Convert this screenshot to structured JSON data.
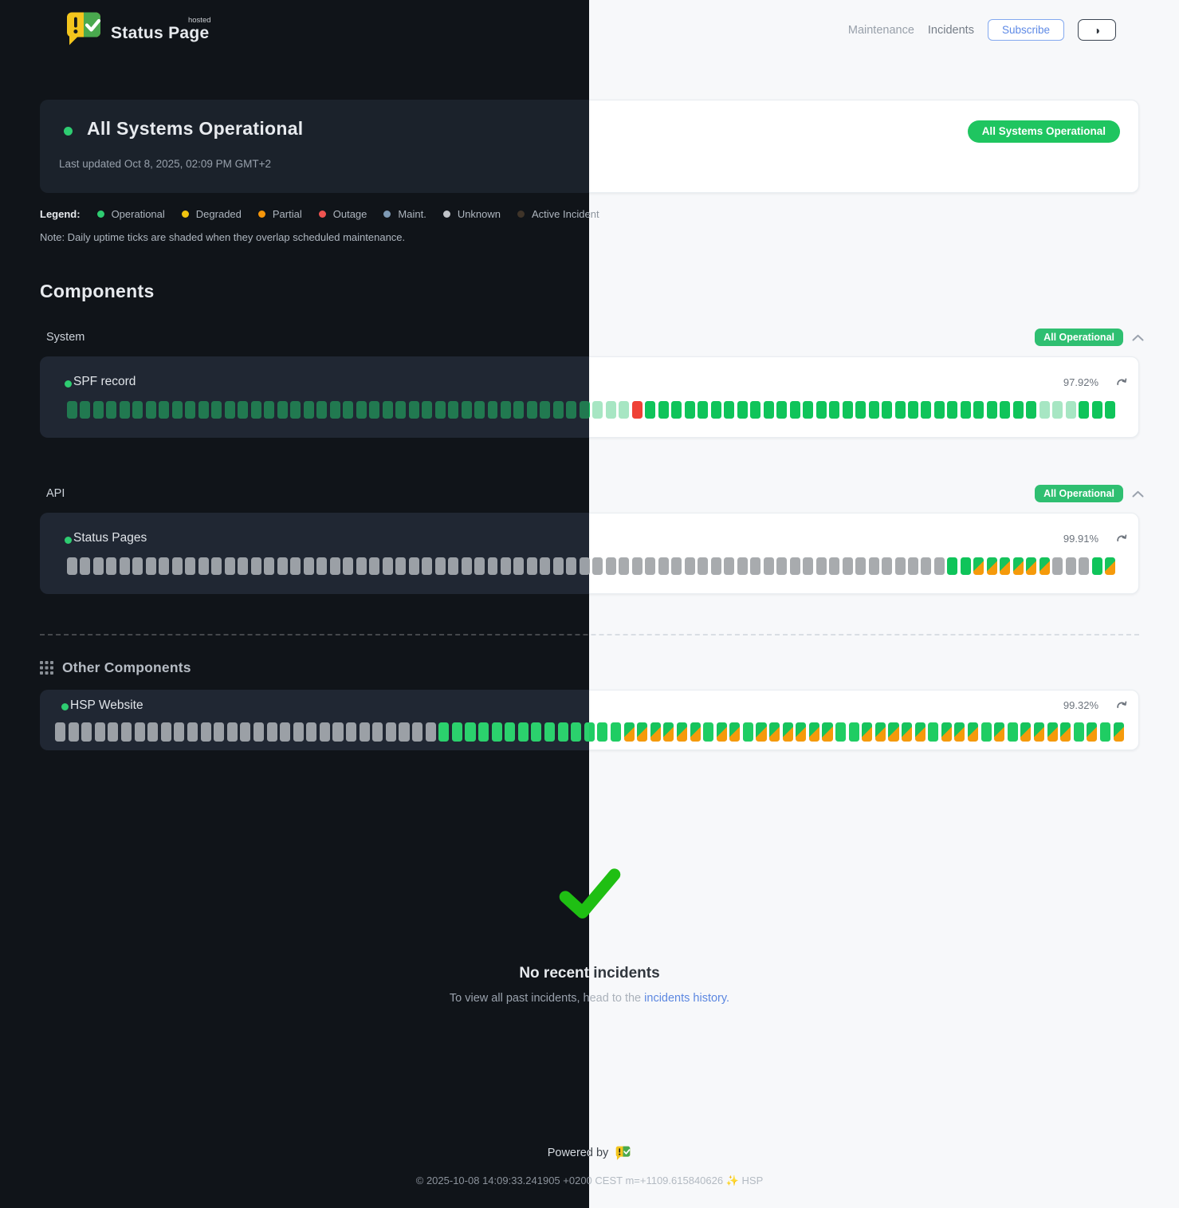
{
  "header": {
    "brand": "Status Page",
    "brand_sup": "hosted",
    "nav": [
      {
        "label": "Maintenance"
      },
      {
        "label": "Incidents"
      }
    ],
    "subscribe_label": "Subscribe"
  },
  "banner": {
    "title": "All Systems Operational",
    "updated": "Last updated Oct 8, 2025, 02:09 PM GMT+2",
    "badge": "All Systems Operational"
  },
  "legend": {
    "label": "Legend:",
    "items": [
      {
        "label": "Operational",
        "color": "#2ecc71"
      },
      {
        "label": "Degraded",
        "color": "#f1c40f"
      },
      {
        "label": "Partial",
        "color": "#f5960a"
      },
      {
        "label": "Outage",
        "color": "#ef5350"
      },
      {
        "label": "Maint.",
        "color": "#7e9ab5"
      },
      {
        "label": "Unknown",
        "color": "#c0c4c9"
      },
      {
        "label": "Active Incident",
        "color": "#3f3429"
      }
    ],
    "note": "Note: Daily uptime ticks are shaded when they overlap scheduled maintenance."
  },
  "components": {
    "title": "Components",
    "groups": [
      {
        "name": "System",
        "badge": "All Operational",
        "rows": [
          {
            "name": "SPF record",
            "uptime": "97.92%",
            "ticks": "oooooooooooooooooooooooooooooooooooooooosssroooooooooooooooooooooooooooooosssooo"
          }
        ]
      },
      {
        "name": "API",
        "badge": "All Operational",
        "rows": [
          {
            "name": "Status Pages",
            "uptime": "99.91%",
            "ticks": "uuuuuuuuuuuuuuuuuuuuuuuuuuuuuuuuuuuuuuuuuuuuuuuuuuuuuuuuuuuuuuuuuuuoogggggguuuog"
          }
        ]
      }
    ],
    "other": {
      "title": "Other Components",
      "rows": [
        {
          "name": "HSP Website",
          "uptime": "99.32%",
          "ticks": "uuuuuuuuuuuuuuuuuuuuuuuuuuuuuooooooooooooooghhhhhoggoggggggoogggggogggogoggggogog"
        }
      ]
    }
  },
  "incidents": {
    "title": "No recent incidents",
    "subtitle_prefix": "To view all past incidents, head to the ",
    "link_label": "incidents history."
  },
  "footer": {
    "powered": "Powered by",
    "copyright": "© 2025-10-08 14:09:33.241905 +0200 CEST m=+1109.615840626 ✨ HSP"
  },
  "colors": {
    "operational": "#2ecc71",
    "badge_green": "#1fc560",
    "group_badge_green": "#2fbf71",
    "outage_red": "#ef4136",
    "partial_orange": "#f5960a",
    "unknown_gray": "#a8abae",
    "link_blue": "#5c87e0",
    "check_green": "#1fbf13",
    "subscribe_blue": "#5e8ae6"
  }
}
